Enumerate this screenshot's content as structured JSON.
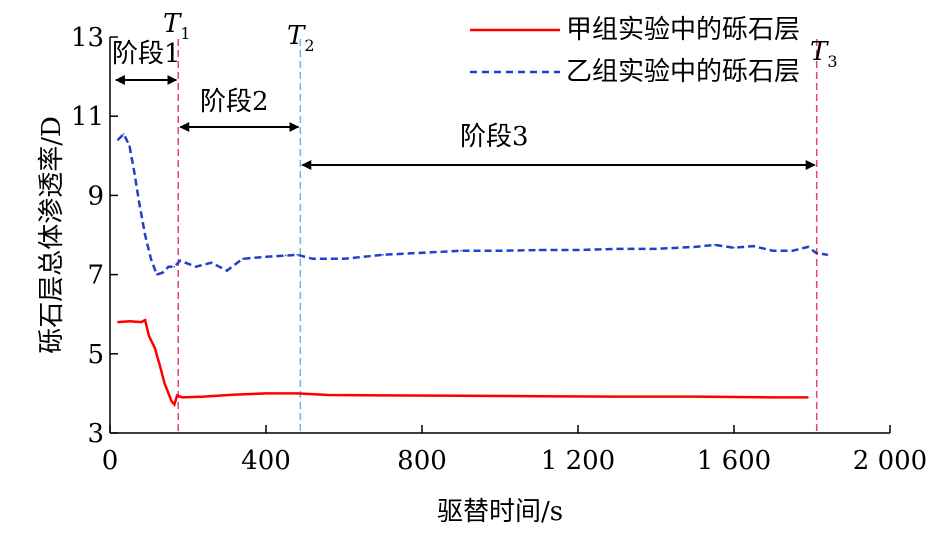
{
  "chart_data": {
    "type": "line",
    "xlabel": "驱替时间/s",
    "ylabel": "砾石层总体渗透率/D",
    "xlim": [
      0,
      2000
    ],
    "ylim": [
      3,
      13
    ],
    "x_ticks": [
      0,
      400,
      800,
      1200,
      1600,
      2000
    ],
    "x_tick_labels": [
      "0",
      "400",
      "800",
      "1 200",
      "1 600",
      "2 000"
    ],
    "y_ticks": [
      3,
      5,
      7,
      9,
      11,
      13
    ],
    "y_tick_labels": [
      "3",
      "5",
      "7",
      "9",
      "11",
      "13"
    ],
    "legend_position": "top-right",
    "series": [
      {
        "name": "甲组实验中的砾石层",
        "color": "#ff0000",
        "style": "solid",
        "points": [
          [
            20,
            5.8
          ],
          [
            50,
            5.82
          ],
          [
            80,
            5.8
          ],
          [
            90,
            5.85
          ],
          [
            100,
            5.45
          ],
          [
            115,
            5.15
          ],
          [
            128,
            4.7
          ],
          [
            140,
            4.25
          ],
          [
            150,
            4.0
          ],
          [
            158,
            3.8
          ],
          [
            165,
            3.72
          ],
          [
            172,
            3.95
          ],
          [
            185,
            3.9
          ],
          [
            240,
            3.92
          ],
          [
            320,
            3.97
          ],
          [
            400,
            4.0
          ],
          [
            480,
            4.0
          ],
          [
            560,
            3.96
          ],
          [
            700,
            3.95
          ],
          [
            900,
            3.94
          ],
          [
            1100,
            3.93
          ],
          [
            1300,
            3.92
          ],
          [
            1500,
            3.92
          ],
          [
            1700,
            3.9
          ],
          [
            1790,
            3.9
          ]
        ]
      },
      {
        "name": "乙组实验中的砾石层",
        "color": "#1f3fcc",
        "style": "dashed",
        "points": [
          [
            20,
            10.4
          ],
          [
            35,
            10.55
          ],
          [
            50,
            10.25
          ],
          [
            62,
            9.6
          ],
          [
            75,
            8.8
          ],
          [
            90,
            8.0
          ],
          [
            105,
            7.4
          ],
          [
            120,
            7.0
          ],
          [
            135,
            7.05
          ],
          [
            150,
            7.2
          ],
          [
            165,
            7.2
          ],
          [
            180,
            7.35
          ],
          [
            220,
            7.2
          ],
          [
            260,
            7.3
          ],
          [
            300,
            7.1
          ],
          [
            340,
            7.4
          ],
          [
            400,
            7.45
          ],
          [
            450,
            7.48
          ],
          [
            480,
            7.5
          ],
          [
            520,
            7.4
          ],
          [
            600,
            7.4
          ],
          [
            700,
            7.5
          ],
          [
            800,
            7.55
          ],
          [
            900,
            7.6
          ],
          [
            1000,
            7.6
          ],
          [
            1100,
            7.62
          ],
          [
            1200,
            7.62
          ],
          [
            1300,
            7.65
          ],
          [
            1400,
            7.65
          ],
          [
            1500,
            7.7
          ],
          [
            1550,
            7.75
          ],
          [
            1600,
            7.68
          ],
          [
            1650,
            7.72
          ],
          [
            1700,
            7.6
          ],
          [
            1750,
            7.6
          ],
          [
            1790,
            7.7
          ],
          [
            1810,
            7.55
          ],
          [
            1840,
            7.5
          ]
        ]
      }
    ],
    "vlines": [
      {
        "label": "T",
        "sub": "1",
        "x": 175,
        "color": "#e8407a"
      },
      {
        "label": "T",
        "sub": "2",
        "x": 488,
        "color": "#6ab8e6"
      },
      {
        "label": "T",
        "sub": "3",
        "x": 1812,
        "color": "#e8407a"
      }
    ],
    "stages": [
      {
        "label": "阶段1",
        "x_start": 10,
        "x_end": 175
      },
      {
        "label": "阶段2",
        "x_start": 175,
        "x_end": 488
      },
      {
        "label": "阶段3",
        "x_start": 488,
        "x_end": 1812
      }
    ]
  }
}
